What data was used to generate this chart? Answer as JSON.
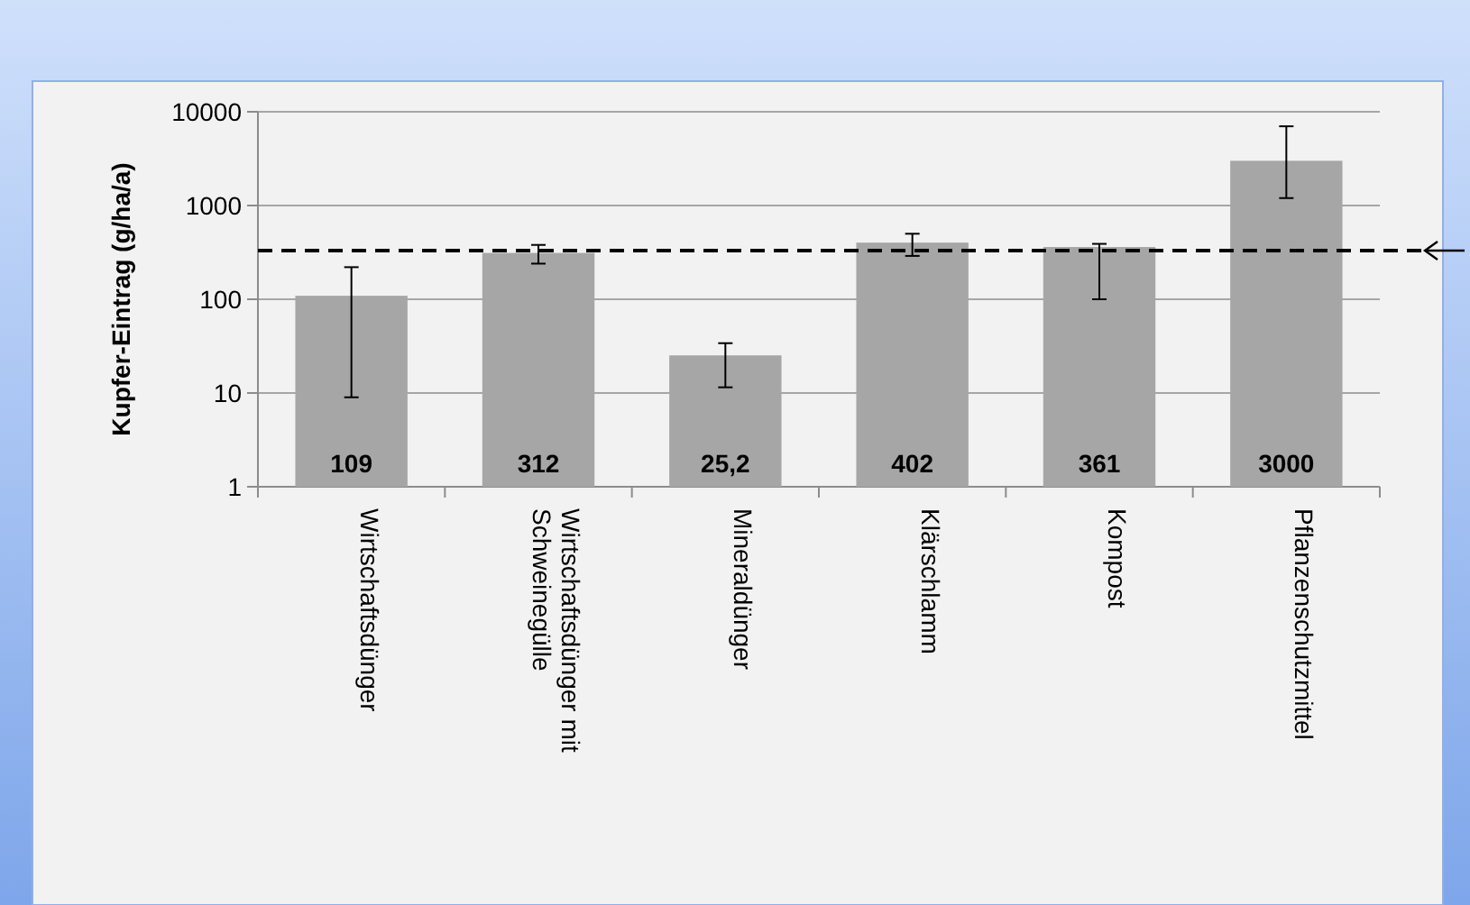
{
  "chart_data": {
    "type": "bar",
    "ylabel": "Kupfer-Eintrag (g/ha/a)",
    "categories": [
      "Wirtschaftsdünger",
      "Wirtschaftsdünger mit Schweinegülle",
      "Mineraldünger",
      "Klärschlamm",
      "Kompost",
      "Pflanzenschutzmittel"
    ],
    "values": [
      109,
      312,
      25.2,
      402,
      361,
      3000
    ],
    "value_labels": [
      "109",
      "312",
      "25,2",
      "402",
      "361",
      "3000"
    ],
    "errors": [
      [
        9,
        220
      ],
      [
        240,
        380
      ],
      [
        11.5,
        34
      ],
      [
        290,
        500
      ],
      [
        100,
        390
      ],
      [
        1200,
        7000
      ]
    ],
    "color": "#a6a6a6",
    "log": true,
    "ylim": [
      1,
      10000
    ],
    "yticks": [
      1,
      10,
      100,
      1000,
      10000
    ],
    "grid": "y",
    "ref_lines": [
      {
        "axis": "y",
        "value": 330,
        "color": "#000000",
        "line_style": "dashed"
      }
    ]
  }
}
